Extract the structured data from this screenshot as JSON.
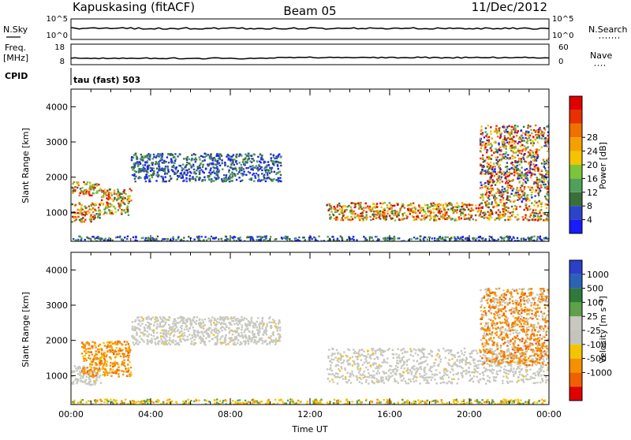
{
  "header": {
    "station": "Kapuskasing (fitACF)",
    "beam": "Beam 05",
    "date": "11/Dec/2012"
  },
  "strips": {
    "nsky": {
      "label": "N.Sky",
      "ticks": [
        "10^5",
        "10^0"
      ]
    },
    "nsearch": {
      "label": "N.Search",
      "ticks": [
        "10^5",
        "10^0"
      ]
    },
    "freq": {
      "label_top": "Freq.",
      "label_unit": "[MHz]",
      "ticks": [
        "18",
        "8"
      ]
    },
    "nave": {
      "label": "Nave",
      "ticks": [
        "60",
        "0"
      ]
    },
    "cpid": {
      "label": "CPID",
      "value": "tau (fast) 503"
    }
  },
  "colors": {
    "power": [
      "#1a1aff",
      "#2b44c8",
      "#3a6f3a",
      "#4fa05a",
      "#7cc43a",
      "#f5c400",
      "#f5a000",
      "#f07000",
      "#e83000",
      "#e00000"
    ],
    "velocity": [
      "#2b3fc8",
      "#2b62b8",
      "#2f7a3a",
      "#5fa04a",
      "#c8c8c0",
      "#c4c4bc",
      "#f5c400",
      "#f59000",
      "#f06000",
      "#e00000"
    ],
    "ground": "#c8c8c0"
  },
  "chart_data": [
    {
      "type": "heatmap",
      "panel": "power",
      "ylabel": "Slant Range [km]",
      "ylim": [
        180,
        4500
      ],
      "yticks": [
        "1000",
        "2000",
        "3000",
        "4000"
      ],
      "xlim": [
        0,
        24
      ],
      "colorbar": {
        "label": "Power [dB]",
        "ticks": [
          "4",
          "8",
          "12",
          "16",
          "20",
          "24",
          "28"
        ]
      },
      "features": [
        {
          "t": [
            0.0,
            1.5
          ],
          "range": [
            750,
            1300
          ],
          "level": "high"
        },
        {
          "t": [
            0.0,
            1.5
          ],
          "range": [
            1500,
            1900
          ],
          "level": "high"
        },
        {
          "t": [
            1.5,
            3.0
          ],
          "range": [
            950,
            1700
          ],
          "level": "high"
        },
        {
          "t": [
            3.0,
            10.5
          ],
          "range": [
            1900,
            2700
          ],
          "level": "low"
        },
        {
          "t": [
            12.8,
            24.0
          ],
          "range": [
            800,
            1300
          ],
          "level": "high"
        },
        {
          "t": [
            20.5,
            24.0
          ],
          "range": [
            1300,
            3500
          ],
          "level": "mixed"
        },
        {
          "t": [
            0.0,
            24.0
          ],
          "range": [
            180,
            350
          ],
          "level": "low"
        }
      ]
    },
    {
      "type": "heatmap",
      "panel": "velocity",
      "ylabel": "Slant Range [km]",
      "ylim": [
        180,
        4500
      ],
      "yticks": [
        "1000",
        "2000",
        "3000",
        "4000"
      ],
      "xlim": [
        0,
        24
      ],
      "xlabel": "Time UT",
      "xticks": [
        "00:00",
        "04:00",
        "08:00",
        "12:00",
        "16:00",
        "20:00",
        "00:00"
      ],
      "colorbar": {
        "label": "Velocity [m s⁻¹]",
        "ticks": [
          "1000",
          "500",
          "100",
          "25",
          "-25",
          "-100",
          "-500",
          "-1000"
        ]
      },
      "features": [
        {
          "t": [
            0.0,
            1.5
          ],
          "range": [
            750,
            1300
          ],
          "value": "ground"
        },
        {
          "t": [
            0.5,
            3.0
          ],
          "range": [
            1000,
            2000
          ],
          "value": "-300"
        },
        {
          "t": [
            3.0,
            10.5
          ],
          "range": [
            1900,
            2700
          ],
          "value": "ground"
        },
        {
          "t": [
            12.8,
            24.0
          ],
          "range": [
            800,
            1800
          ],
          "value": "ground"
        },
        {
          "t": [
            20.5,
            24.0
          ],
          "range": [
            1300,
            3500
          ],
          "value": "-200"
        },
        {
          "t": [
            0.0,
            24.0
          ],
          "range": [
            180,
            350
          ],
          "value": "-100"
        }
      ]
    }
  ]
}
